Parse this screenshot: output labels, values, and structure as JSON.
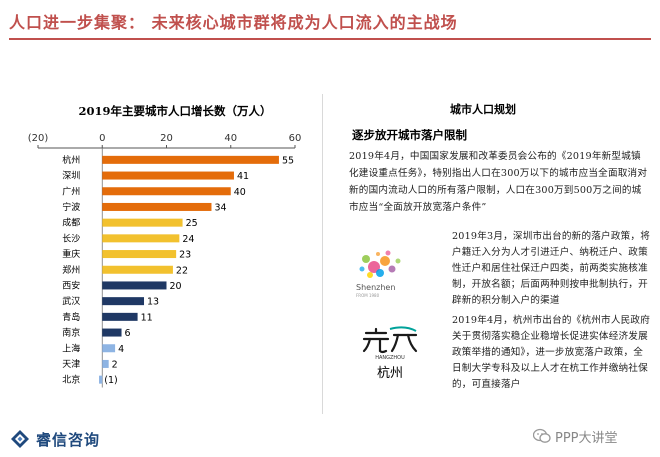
{
  "header": {
    "title": "人口进一步集聚：  未来核心城市群将成为人口流入的主战场"
  },
  "chart_data": {
    "type": "bar",
    "orientation": "horizontal",
    "title": "2019年主要城市人口增长数（万人）",
    "categories": [
      "杭州",
      "深圳",
      "广州",
      "宁波",
      "成都",
      "长沙",
      "重庆",
      "郑州",
      "西安",
      "武汉",
      "青岛",
      "南京",
      "上海",
      "天津",
      "北京"
    ],
    "values": [
      55,
      41,
      40,
      34,
      25,
      24,
      23,
      22,
      20,
      13,
      11,
      6,
      4,
      2,
      -1
    ],
    "value_labels": [
      "55",
      "41",
      "40",
      "34",
      "25",
      "24",
      "23",
      "22",
      "20",
      "13",
      "11",
      "6",
      "4",
      "2",
      "(1)"
    ],
    "bar_colors": [
      "#e46c0a",
      "#e46c0a",
      "#e46c0a",
      "#e46c0a",
      "#f2c12e",
      "#f2c12e",
      "#f2c12e",
      "#f2c12e",
      "#1f3864",
      "#1f3864",
      "#1f3864",
      "#1f3864",
      "#8eb4e3",
      "#8eb4e3",
      "#8eb4e3"
    ],
    "xlim": [
      -20,
      60
    ],
    "xticks": [
      -20,
      0,
      20,
      40,
      60
    ],
    "xtick_labels": [
      "(20)",
      "0",
      "20",
      "40",
      "60"
    ],
    "xaxis_position": "top",
    "grid": false
  },
  "panel": {
    "heading": "城市人口规划",
    "subheading": "逐步放开城市落户限制",
    "para1": "2019年4月，中国国家发展和改革委员会公布的《2019年新型城镇化建设重点任务》，特别指出人口在300万以下的城市应当全面取消对新的国内流动人口的所有落户限制，人口在300万到500万之间的城市应当“全面放开放宽落户条件”",
    "para2": "2019年3月，深圳市出台的新的落户政策，将户籍迁入分为人才引进迁户、纳税迁户、政策性迁户和居住社保迁户四类，前两类实施核准制，开放名额；后面两种则按申批制执行，开辟新的积分制入户的渠道",
    "para3": "2019年4月，杭州市出台的《杭州市人民政府关于贯彻落实稳企业稳增长促进实体经济发展政策举措的通知》，进一步放宽落户政策，全日制大学专科及以上人才在杭工作并缴纳社保的，可直接落户"
  },
  "logos": {
    "shenzhen_caption": "Shenzhen",
    "shenzhen_tagline": "FROM 1980",
    "hangzhou_caption_en": "HANGZHOU",
    "hangzhou_caption_cn": "杭州"
  },
  "footer": {
    "brand": "睿信咨询",
    "watermark": "PPP大讲堂"
  },
  "colors": {
    "accent": "#c0504d",
    "brand": "#1f497d"
  }
}
